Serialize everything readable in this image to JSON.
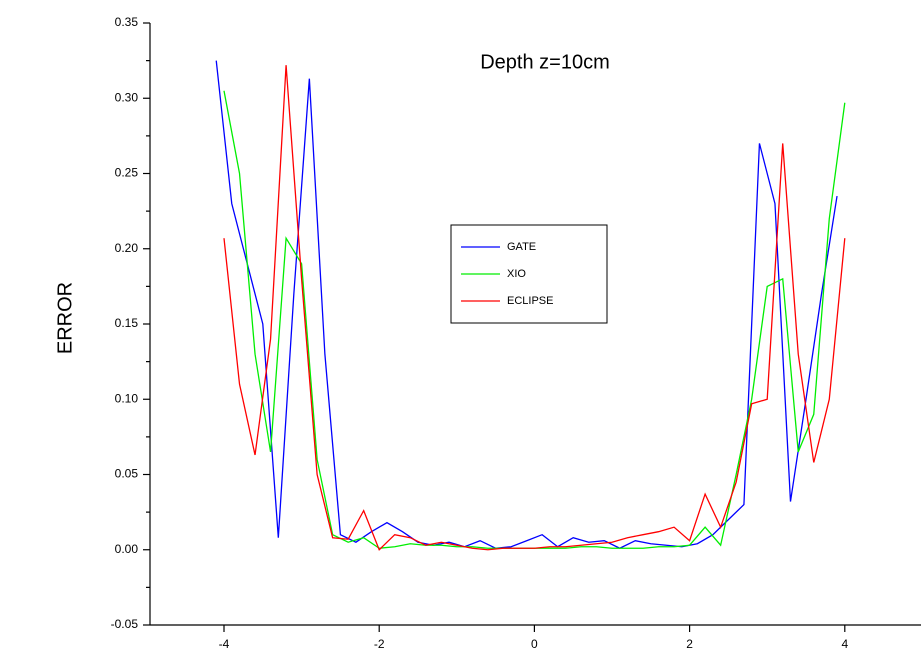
{
  "chart_data": {
    "type": "line",
    "annotation": "Depth z=10cm",
    "y_label": "ERROR",
    "xlim": [
      -5,
      5
    ],
    "ylim": [
      -0.05,
      0.35
    ],
    "xticks": [
      -4,
      -2,
      0,
      2,
      4
    ],
    "yticks": [
      {
        "value": -0.05,
        "label": "-0.05"
      },
      {
        "value": 0,
        "label": "0.00"
      },
      {
        "value": 0.05,
        "label": "0.05"
      },
      {
        "value": 0.1,
        "label": "0.10"
      },
      {
        "value": 0.15,
        "label": "0.15"
      },
      {
        "value": 0.2,
        "label": "0.20"
      },
      {
        "value": 0.25,
        "label": "0.25"
      },
      {
        "value": 0.3,
        "label": "0.30"
      },
      {
        "value": 0.35,
        "label": "0.35"
      }
    ],
    "legend": "center",
    "series": [
      {
        "name": "GATE",
        "color": "#0000ff",
        "x": [
          -4.1,
          -3.9,
          -3.7,
          -3.5,
          -3.3,
          -3.1,
          -2.9,
          -2.7,
          -2.5,
          -2.3,
          -2.1,
          -1.9,
          -1.7,
          -1.5,
          -1.3,
          -1.1,
          -0.9,
          -0.7,
          -0.5,
          -0.3,
          -0.1,
          0.1,
          0.3,
          0.5,
          0.7,
          0.9,
          1.1,
          1.3,
          1.5,
          1.7,
          1.9,
          2.1,
          2.3,
          2.5,
          2.7,
          2.9,
          3.1,
          3.3,
          3.5,
          3.7,
          3.9
        ],
        "values": [
          0.325,
          0.23,
          0.19,
          0.15,
          0.008,
          0.17,
          0.313,
          0.13,
          0.01,
          0.005,
          0.012,
          0.018,
          0.012,
          0.005,
          0.003,
          0.005,
          0.002,
          0.006,
          0.001,
          0.002,
          0.006,
          0.01,
          0.002,
          0.008,
          0.005,
          0.006,
          0.001,
          0.006,
          0.004,
          0.003,
          0.002,
          0.004,
          0.01,
          0.02,
          0.03,
          0.27,
          0.23,
          0.032,
          0.1,
          0.17,
          0.235
        ]
      },
      {
        "name": "XIO",
        "color": "#00ee00",
        "x": [
          -4,
          -3.8,
          -3.6,
          -3.4,
          -3.2,
          -3,
          -2.8,
          -2.6,
          -2.4,
          -2.2,
          -2,
          -1.8,
          -1.6,
          -1.4,
          -1.2,
          -1,
          -0.8,
          -0.6,
          -0.4,
          -0.2,
          0,
          0.2,
          0.4,
          0.6,
          0.8,
          1,
          1.2,
          1.4,
          1.6,
          1.8,
          2,
          2.2,
          2.4,
          2.6,
          2.8,
          3,
          3.2,
          3.4,
          3.6,
          3.8,
          4
        ],
        "values": [
          0.305,
          0.25,
          0.13,
          0.065,
          0.207,
          0.19,
          0.06,
          0.01,
          0.005,
          0.008,
          0.001,
          0.002,
          0.004,
          0.003,
          0.003,
          0.002,
          0.002,
          0.001,
          0.001,
          0.001,
          0.001,
          0.001,
          0.001,
          0.002,
          0.002,
          0.001,
          0.001,
          0.001,
          0.002,
          0.002,
          0.003,
          0.015,
          0.003,
          0.05,
          0.1,
          0.175,
          0.18,
          0.065,
          0.09,
          0.22,
          0.297
        ]
      },
      {
        "name": "ECLIPSE",
        "color": "#ff0000",
        "x": [
          -4,
          -3.8,
          -3.6,
          -3.4,
          -3.2,
          -3,
          -2.8,
          -2.6,
          -2.4,
          -2.2,
          -2,
          -1.8,
          -1.6,
          -1.4,
          -1.2,
          -1,
          -0.8,
          -0.6,
          -0.4,
          -0.2,
          0,
          0.2,
          0.4,
          0.6,
          0.8,
          1,
          1.2,
          1.4,
          1.6,
          1.8,
          2,
          2.2,
          2.4,
          2.6,
          2.8,
          3,
          3.2,
          3.4,
          3.6,
          3.8,
          4
        ],
        "values": [
          0.207,
          0.11,
          0.063,
          0.14,
          0.322,
          0.18,
          0.05,
          0.008,
          0.007,
          0.026,
          0,
          0.01,
          0.008,
          0.003,
          0.005,
          0.003,
          0.001,
          0,
          0.001,
          0.001,
          0.001,
          0.002,
          0.002,
          0.003,
          0.004,
          0.005,
          0.008,
          0.01,
          0.012,
          0.015,
          0.006,
          0.037,
          0.015,
          0.045,
          0.097,
          0.1,
          0.27,
          0.13,
          0.058,
          0.1,
          0.207
        ]
      }
    ]
  }
}
